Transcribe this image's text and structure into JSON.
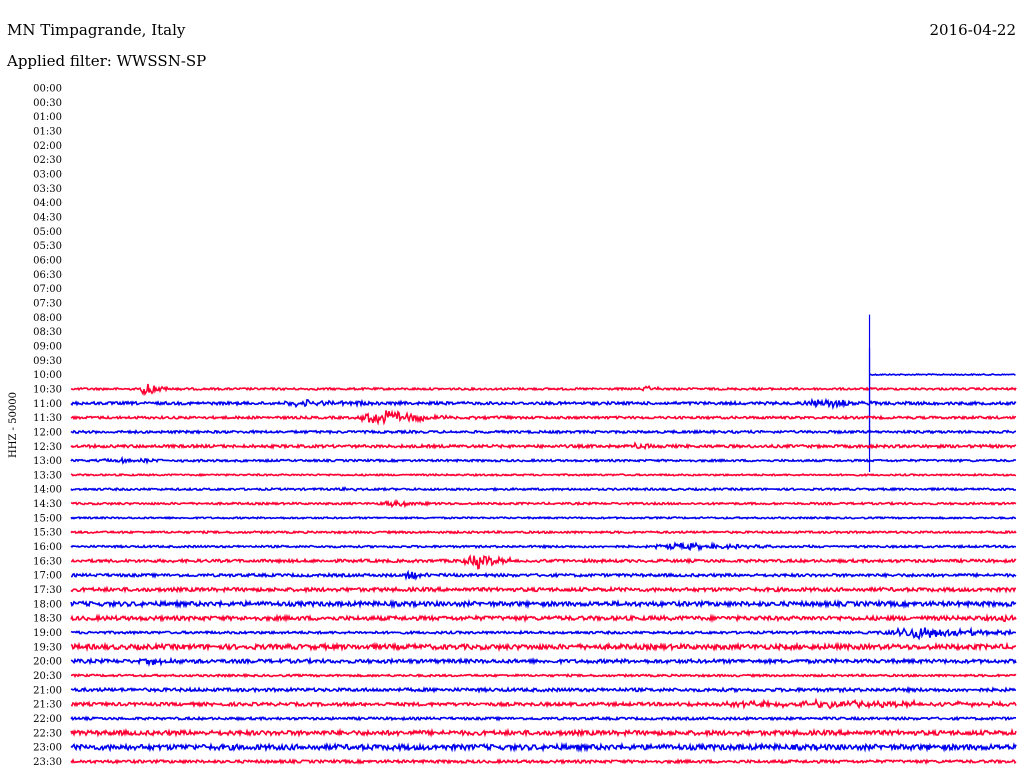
{
  "header": {
    "station": "MN Timpagrande, Italy",
    "date": "2016-04-22",
    "filter": "Applied filter: WWSSN-SP"
  },
  "chart_data": {
    "type": "line",
    "ylabel": "HHZ - 50000",
    "row_labels": [
      "00:00",
      "00:30",
      "01:00",
      "01:30",
      "02:00",
      "02:30",
      "03:00",
      "03:30",
      "04:00",
      "04:30",
      "05:00",
      "05:30",
      "06:00",
      "06:30",
      "07:00",
      "07:30",
      "08:00",
      "08:30",
      "09:00",
      "09:30",
      "10:00",
      "10:30",
      "11:00",
      "11:30",
      "12:00",
      "12:30",
      "13:00",
      "13:30",
      "14:00",
      "14:30",
      "15:00",
      "15:30",
      "16:00",
      "16:30",
      "17:00",
      "17:30",
      "18:00",
      "18:30",
      "19:00",
      "19:30",
      "20:00",
      "20:30",
      "21:00",
      "21:30",
      "22:00",
      "22:30",
      "23:00",
      "23:30"
    ],
    "colors": [
      "#0000ee",
      "#ff0033"
    ],
    "trace_start": "10:00",
    "trace_start_fraction": 0.845,
    "noise_level": [
      0,
      0,
      0,
      0,
      0,
      0,
      0,
      0,
      0,
      0,
      0,
      0,
      0,
      0,
      0,
      0,
      0,
      0,
      0,
      0,
      0.6,
      1.0,
      1.4,
      1.2,
      1.2,
      1.4,
      1.0,
      0.8,
      1.0,
      1.0,
      0.8,
      1.0,
      1.0,
      1.4,
      1.4,
      1.8,
      2.2,
      2.0,
      1.2,
      2.4,
      1.8,
      1.0,
      1.6,
      1.6,
      1.2,
      2.2,
      2.6,
      1.4
    ],
    "events": [
      {
        "row": "10:00",
        "at": 0.845,
        "amp": 60,
        "dur": 0.002,
        "type": "spike"
      },
      {
        "row": "10:30",
        "at": 0.08,
        "amp": 7,
        "dur": 0.01,
        "type": "burst"
      },
      {
        "row": "10:30",
        "at": 0.61,
        "amp": 2,
        "dur": 0.012,
        "type": "burst"
      },
      {
        "row": "11:00",
        "at": 0.25,
        "amp": 3,
        "dur": 0.04,
        "type": "burst"
      },
      {
        "row": "11:00",
        "at": 0.8,
        "amp": 4,
        "dur": 0.03,
        "type": "burst"
      },
      {
        "row": "11:00",
        "at": 0.845,
        "amp": 55,
        "dur": 0.002,
        "type": "spike"
      },
      {
        "row": "11:30",
        "at": 0.33,
        "amp": 8,
        "dur": 0.035,
        "type": "burst"
      },
      {
        "row": "12:30",
        "at": 0.6,
        "amp": 4,
        "dur": 0.008,
        "type": "burst"
      },
      {
        "row": "13:00",
        "at": 0.06,
        "amp": 2,
        "dur": 0.04,
        "type": "burst"
      },
      {
        "row": "14:00",
        "at": 0.29,
        "amp": 2,
        "dur": 0.008,
        "type": "burst"
      },
      {
        "row": "14:30",
        "at": 0.34,
        "amp": 4,
        "dur": 0.015,
        "type": "burst"
      },
      {
        "row": "16:00",
        "at": 0.65,
        "amp": 3,
        "dur": 0.05,
        "type": "burst"
      },
      {
        "row": "16:30",
        "at": 0.43,
        "amp": 7,
        "dur": 0.02,
        "type": "burst"
      },
      {
        "row": "17:00",
        "at": 0.36,
        "amp": 5,
        "dur": 0.012,
        "type": "burst"
      },
      {
        "row": "18:30",
        "at": 0.99,
        "amp": 3,
        "dur": 0.01,
        "type": "burst"
      },
      {
        "row": "19:00",
        "at": 0.9,
        "amp": 6,
        "dur": 0.05,
        "type": "burst"
      },
      {
        "row": "20:00",
        "at": 0.09,
        "amp": 3,
        "dur": 0.02,
        "type": "burst"
      },
      {
        "row": "21:30",
        "at": 0.78,
        "amp": 3,
        "dur": 0.15,
        "type": "burst"
      }
    ]
  }
}
